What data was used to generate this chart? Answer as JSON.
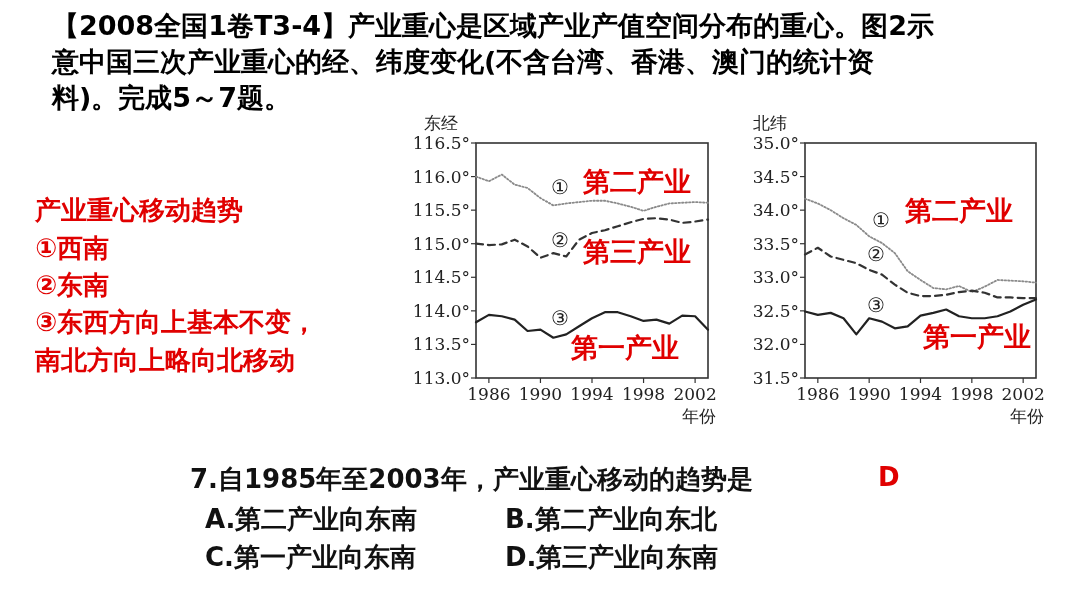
{
  "chart_data": [
    {
      "type": "other",
      "title": "【2008全国1卷T3-4】产业重心是区域产业产值空间分布的重心。图2示意中国三次产业重心的经、纬度变化(不含台湾、香港、澳门的统计资料)。完成5～7题。",
      "annotations": [
        "产业重心移动趋势",
        "①西南",
        "②东南",
        "③东西方向上基本不变，",
        "南北方向上略向北移动",
        "7.自1985年至2003年，产业重心移动的趋势是",
        "D",
        "A.第二产业向东南",
        "B.第二产业向东北",
        "C.第一产业向东南",
        "D.第三产业向东南"
      ]
    },
    {
      "type": "line",
      "xlabel": "年份",
      "ylabel": "东经",
      "xlim": [
        1985,
        2003
      ],
      "ylim": [
        113.0,
        116.5
      ],
      "xticks": [
        1986,
        1990,
        1994,
        1998,
        2002
      ],
      "yticks": [
        {
          "value": 113.0,
          "label": "113.0°"
        },
        {
          "value": 113.5,
          "label": "113.5°"
        },
        {
          "value": 114.0,
          "label": "114.0°"
        },
        {
          "value": 114.5,
          "label": "114.5°"
        },
        {
          "value": 115.0,
          "label": "115.0°"
        },
        {
          "value": 115.5,
          "label": "115.5°"
        },
        {
          "value": 116.0,
          "label": "116.0°"
        },
        {
          "value": 116.5,
          "label": "116.5°"
        }
      ],
      "x": [
        1985,
        1986,
        1987,
        1988,
        1989,
        1990,
        1991,
        1992,
        1993,
        1994,
        1995,
        1996,
        1997,
        1998,
        1999,
        2000,
        2001,
        2002,
        2003
      ],
      "series": [
        {
          "name": "第二产业",
          "color": "#8a8a8a",
          "line_style": "dotted",
          "values": [
            116.0,
            115.93,
            116.03,
            115.88,
            115.83,
            115.68,
            115.57,
            115.6,
            115.62,
            115.64,
            115.64,
            115.6,
            115.55,
            115.49,
            115.55,
            115.6,
            115.61,
            115.62,
            115.61
          ]
        },
        {
          "name": "第三产业",
          "color": "#333333",
          "line_style": "dashed",
          "values": [
            115.0,
            114.98,
            114.99,
            115.06,
            114.96,
            114.79,
            114.86,
            114.81,
            115.06,
            115.16,
            115.2,
            115.26,
            115.32,
            115.37,
            115.38,
            115.36,
            115.31,
            115.33,
            115.36
          ]
        },
        {
          "name": "第一产业",
          "color": "#222222",
          "line_style": "solid",
          "values": [
            113.83,
            113.94,
            113.92,
            113.87,
            113.7,
            113.72,
            113.6,
            113.65,
            113.77,
            113.89,
            113.98,
            113.98,
            113.92,
            113.85,
            113.87,
            113.81,
            113.93,
            113.92,
            113.72
          ]
        }
      ],
      "annotations": [
        "①",
        "②",
        "③"
      ]
    },
    {
      "type": "line",
      "xlabel": "年份",
      "ylabel": "北纬",
      "xlim": [
        1985,
        2003
      ],
      "ylim": [
        31.5,
        35.0
      ],
      "xticks": [
        1986,
        1990,
        1994,
        1998,
        2002
      ],
      "yticks": [
        {
          "value": 31.5,
          "label": "31.5°"
        },
        {
          "value": 32.0,
          "label": "32.0°"
        },
        {
          "value": 32.5,
          "label": "32.5°"
        },
        {
          "value": 33.0,
          "label": "33.0°"
        },
        {
          "value": 33.5,
          "label": "33.5°"
        },
        {
          "value": 34.0,
          "label": "34.0°"
        },
        {
          "value": 34.5,
          "label": "34.5°"
        },
        {
          "value": 35.0,
          "label": "35.0°"
        }
      ],
      "x": [
        1985,
        1986,
        1987,
        1988,
        1989,
        1990,
        1991,
        1992,
        1993,
        1994,
        1995,
        1996,
        1997,
        1998,
        1999,
        2000,
        2001,
        2002,
        2003
      ],
      "series": [
        {
          "name": "第二产业",
          "color": "#8a8a8a",
          "line_style": "dotted",
          "values": [
            34.17,
            34.1,
            34.0,
            33.88,
            33.78,
            33.61,
            33.51,
            33.36,
            33.09,
            32.96,
            32.84,
            32.82,
            32.87,
            32.78,
            32.86,
            32.96,
            32.95,
            32.94,
            32.92
          ]
        },
        {
          "color": "#333333",
          "line_style": "dashed",
          "values": [
            33.34,
            33.44,
            33.31,
            33.26,
            33.21,
            33.11,
            33.04,
            32.89,
            32.77,
            32.72,
            32.72,
            32.74,
            32.78,
            32.8,
            32.77,
            32.7,
            32.7,
            32.69,
            32.69
          ]
        },
        {
          "name": "第一产业",
          "color": "#222222",
          "line_style": "solid",
          "values": [
            32.49,
            32.44,
            32.47,
            32.39,
            32.15,
            32.39,
            32.34,
            32.24,
            32.27,
            32.43,
            32.47,
            32.52,
            32.42,
            32.39,
            32.39,
            32.42,
            32.49,
            32.59,
            32.67
          ]
        }
      ],
      "annotations": [
        "①",
        "②",
        "③"
      ]
    }
  ]
}
